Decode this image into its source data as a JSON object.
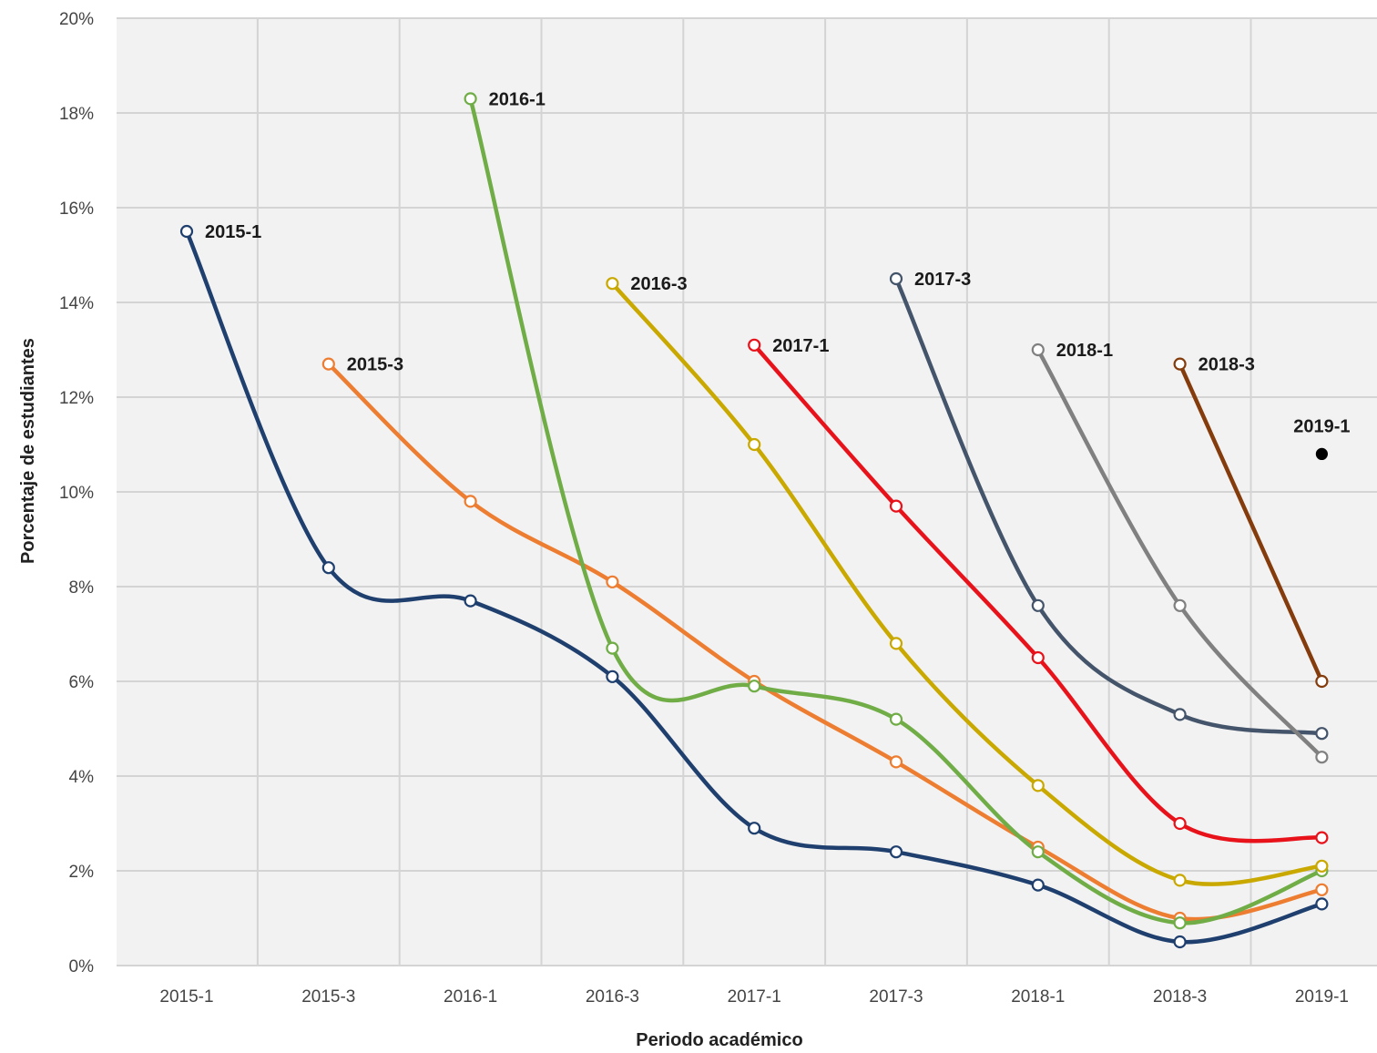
{
  "chart_data": {
    "type": "line",
    "xlabel": "Periodo académico",
    "ylabel": "Porcentaje de estudiantes",
    "categories": [
      "2015-1",
      "2015-3",
      "2016-1",
      "2016-3",
      "2017-1",
      "2017-3",
      "2018-1",
      "2018-3",
      "2019-1"
    ],
    "ylim": [
      0,
      20
    ],
    "yticks": [
      "0%",
      "2%",
      "4%",
      "6%",
      "8%",
      "10%",
      "12%",
      "14%",
      "16%",
      "18%",
      "20%"
    ],
    "grid": true,
    "series": [
      {
        "name": "2015-1",
        "color": "#1f3f6e",
        "values": [
          15.5,
          8.4,
          7.7,
          6.1,
          2.9,
          2.4,
          1.7,
          0.5,
          1.3
        ]
      },
      {
        "name": "2015-3",
        "color": "#ed7d31",
        "values": [
          null,
          12.7,
          9.8,
          8.1,
          6.0,
          4.3,
          2.5,
          1.0,
          1.6
        ]
      },
      {
        "name": "2016-1",
        "color": "#70ad47",
        "values": [
          null,
          null,
          18.3,
          6.7,
          5.9,
          5.2,
          2.4,
          0.9,
          2.0
        ]
      },
      {
        "name": "2016-3",
        "color": "#c9a800",
        "values": [
          null,
          null,
          null,
          14.4,
          11.0,
          6.8,
          3.8,
          1.8,
          2.1
        ]
      },
      {
        "name": "2017-1",
        "color": "#e8121b",
        "values": [
          null,
          null,
          null,
          null,
          13.1,
          9.7,
          6.5,
          3.0,
          2.7
        ]
      },
      {
        "name": "2017-3",
        "color": "#44546a",
        "values": [
          null,
          null,
          null,
          null,
          null,
          14.5,
          7.6,
          5.3,
          4.9
        ]
      },
      {
        "name": "2018-1",
        "color": "#808080",
        "values": [
          null,
          null,
          null,
          null,
          null,
          null,
          13.0,
          7.6,
          4.4
        ]
      },
      {
        "name": "2018-3",
        "color": "#843c0c",
        "values": [
          null,
          null,
          null,
          null,
          null,
          null,
          null,
          12.7,
          6.0
        ]
      },
      {
        "name": "2019-1",
        "color": "#000000",
        "values": [
          null,
          null,
          null,
          null,
          null,
          null,
          null,
          null,
          10.8
        ]
      }
    ]
  }
}
